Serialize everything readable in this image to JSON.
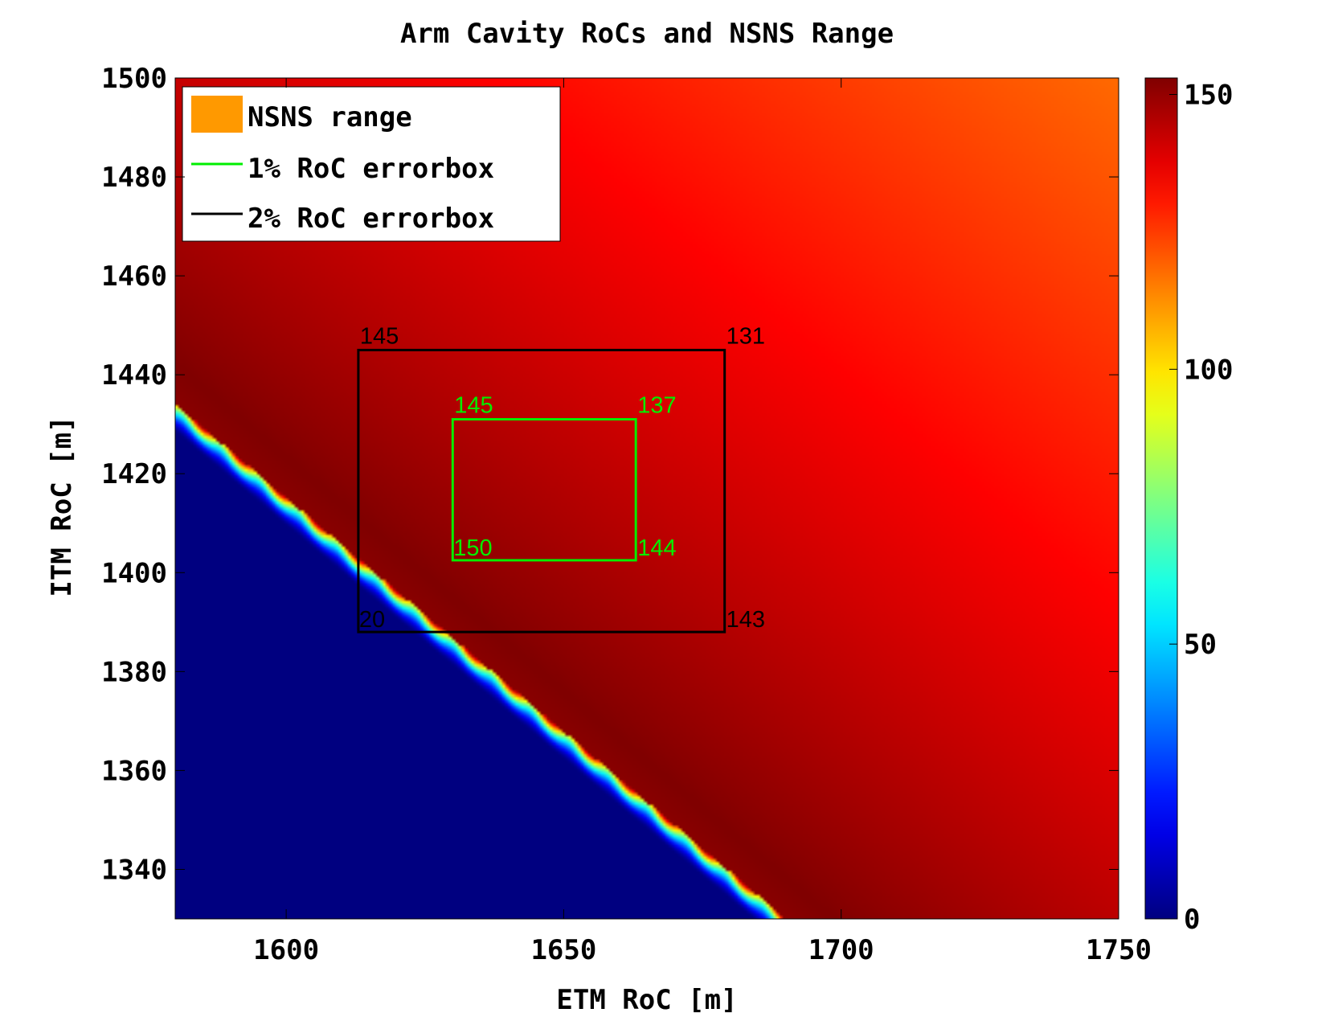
{
  "chart_data": {
    "type": "heatmap",
    "title": "Arm Cavity RoCs and NSNS Range",
    "xlabel": "ETM RoC [m]",
    "ylabel": "ITM RoC [m]",
    "xlim": [
      1580,
      1750
    ],
    "ylim": [
      1330,
      1500
    ],
    "xticks": [
      "1600",
      "1650",
      "1700",
      "1750"
    ],
    "xtick_values": [
      1600,
      1650,
      1700,
      1750
    ],
    "yticks": [
      "1340",
      "1360",
      "1380",
      "1400",
      "1420",
      "1440",
      "1460",
      "1480",
      "1500"
    ],
    "ytick_values": [
      1340,
      1360,
      1380,
      1400,
      1420,
      1440,
      1460,
      1480,
      1500
    ],
    "colormap": "jet",
    "colorbar": {
      "range": [
        0,
        153
      ],
      "ticks": [
        "0",
        "50",
        "100",
        "150"
      ],
      "tick_values": [
        0,
        50,
        100,
        150
      ]
    },
    "grid": false,
    "legend_placement": "top-left",
    "legend": [
      {
        "label": "NSNS range",
        "kind": "patch",
        "color": "#ff9900"
      },
      {
        "label": "1% RoC errorbox",
        "kind": "line",
        "color": "#00ee00"
      },
      {
        "label": "2% RoC errorbox",
        "kind": "line",
        "color": "#000000"
      }
    ],
    "errorboxes": [
      {
        "name": "1% RoC errorbox",
        "color": "#00ee00",
        "x_range": [
          1630,
          1663
        ],
        "y_range": [
          1402.5,
          1431
        ],
        "corner_values": {
          "top_left": "145",
          "top_right": "137",
          "bottom_left": "150",
          "bottom_right": "144"
        }
      },
      {
        "name": "2% RoC errorbox",
        "color": "#000000",
        "x_range": [
          1613,
          1679
        ],
        "y_range": [
          1388,
          1445
        ],
        "corner_values": {
          "top_left": "145",
          "top_right": "131",
          "bottom_left": "20",
          "bottom_right": "143"
        }
      }
    ],
    "field_description": {
      "stability_boundary_at_x": [
        1580,
        1690
      ],
      "stability_boundary_at_y": [
        1434,
        1330
      ],
      "peak_value": 153,
      "value_at_top_right_corner": 118
    }
  }
}
